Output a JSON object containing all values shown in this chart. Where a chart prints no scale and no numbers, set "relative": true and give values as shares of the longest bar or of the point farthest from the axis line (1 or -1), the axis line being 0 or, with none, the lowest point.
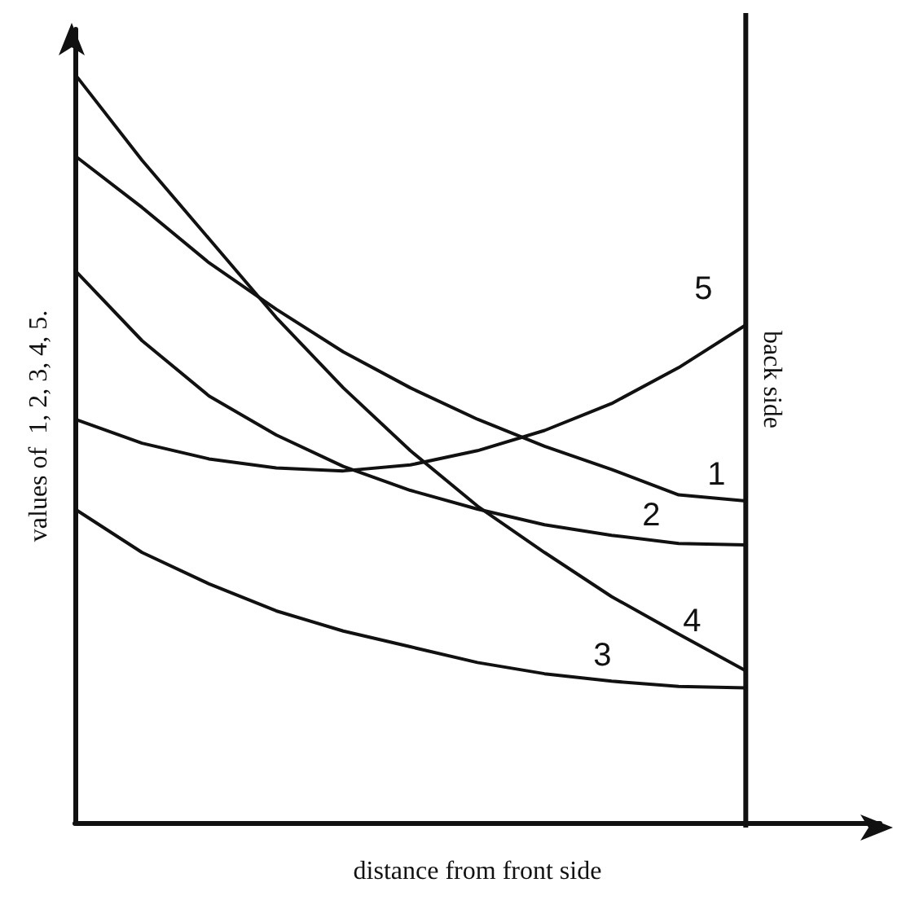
{
  "chart_data": {
    "type": "line",
    "relative": true,
    "xlabel": "distance from front side",
    "ylabel": "values of  1, 2, 3, 4, 5.",
    "categories": [
      null,
      null,
      null,
      null,
      null,
      null,
      null,
      null,
      null,
      null,
      null,
      null,
      null
    ],
    "grid": false,
    "legend": false,
    "marker": "none",
    "line_style": "solid",
    "ref_lines": [
      {
        "axis": "x",
        "label": "back side",
        "color": "#111111"
      }
    ],
    "series": [
      {
        "name": "1",
        "color": "#111111",
        "values": [
          0.891,
          0.822,
          0.748,
          0.686,
          0.629,
          0.581,
          0.539,
          0.503,
          0.472,
          0.438,
          0.43,
          null,
          null
        ]
      },
      {
        "name": "2",
        "color": "#111111",
        "values": [
          0.738,
          0.644,
          0.57,
          0.518,
          0.476,
          0.444,
          0.419,
          0.398,
          0.384,
          0.373,
          0.371,
          null,
          null
        ]
      },
      {
        "name": "3",
        "color": "#111111",
        "values": [
          0.419,
          0.361,
          0.319,
          0.283,
          0.256,
          0.235,
          0.214,
          0.199,
          0.189,
          0.182,
          0.18,
          null,
          null
        ]
      },
      {
        "name": "4",
        "color": "#111111",
        "values": [
          1,
          0.885,
          0.78,
          0.675,
          0.581,
          0.497,
          0.423,
          0.361,
          0.302,
          0.252,
          0.203,
          null,
          null
        ]
      },
      {
        "name": "5",
        "color": "#111111",
        "values": [
          0.539,
          0.507,
          0.486,
          0.474,
          0.47,
          0.478,
          0.497,
          0.524,
          0.56,
          0.608,
          0.665,
          null,
          null
        ]
      }
    ]
  }
}
